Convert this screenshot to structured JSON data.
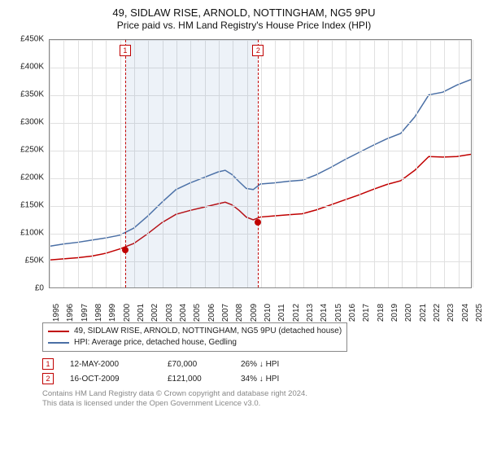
{
  "title": "49, SIDLAW RISE, ARNOLD, NOTTINGHAM, NG5 9PU",
  "subtitle": "Price paid vs. HM Land Registry's House Price Index (HPI)",
  "chart": {
    "type": "line",
    "background_color": "#ffffff",
    "grid_color": "#e0e0e0",
    "axis_color": "#888888",
    "ylim": [
      0,
      450000
    ],
    "ytick_step": 50000,
    "ytick_labels": [
      "£0",
      "£50K",
      "£100K",
      "£150K",
      "£200K",
      "£250K",
      "£300K",
      "£350K",
      "£400K",
      "£450K"
    ],
    "x_years": [
      1995,
      1996,
      1997,
      1998,
      1999,
      2000,
      2001,
      2002,
      2003,
      2004,
      2005,
      2006,
      2007,
      2008,
      2009,
      2010,
      2011,
      2012,
      2013,
      2014,
      2015,
      2016,
      2017,
      2018,
      2019,
      2020,
      2021,
      2022,
      2023,
      2024,
      2025
    ],
    "band": {
      "start_year": 2000.36,
      "end_year": 2009.79,
      "color": "rgba(110,150,200,0.12)",
      "edge_color": "#c00000"
    },
    "series": [
      {
        "name": "hpi",
        "label": "HPI: Average price, detached house, Gedling",
        "color": "#4a6fa5",
        "width": 1.5,
        "years": [
          1995,
          1996,
          1997,
          1998,
          1999,
          2000,
          2001,
          2002,
          2003,
          2004,
          2005,
          2006,
          2007,
          2007.5,
          2008,
          2008.5,
          2009,
          2009.5,
          2010,
          2011,
          2012,
          2013,
          2014,
          2015,
          2016,
          2017,
          2018,
          2019,
          2020,
          2021,
          2022,
          2023,
          2024,
          2025
        ],
        "values": [
          75000,
          79000,
          82000,
          86000,
          90000,
          95000,
          108000,
          130000,
          155000,
          178000,
          190000,
          200000,
          210000,
          213000,
          205000,
          192000,
          180000,
          178000,
          188000,
          190000,
          193000,
          195000,
          205000,
          218000,
          232000,
          245000,
          258000,
          270000,
          280000,
          310000,
          350000,
          355000,
          368000,
          378000
        ]
      },
      {
        "name": "property",
        "label": "49, SIDLAW RISE, ARNOLD, NOTTINGHAM, NG5 9PU (detached house)",
        "color": "#c00000",
        "width": 1.5,
        "years": [
          1995,
          1996,
          1997,
          1998,
          1999,
          2000,
          2001,
          2002,
          2003,
          2004,
          2005,
          2006,
          2007,
          2007.5,
          2008,
          2008.5,
          2009,
          2009.5,
          2010,
          2011,
          2012,
          2013,
          2014,
          2015,
          2016,
          2017,
          2018,
          2019,
          2020,
          2021,
          2022,
          2023,
          2024,
          2025
        ],
        "values": [
          50000,
          52000,
          54000,
          57000,
          62000,
          70000,
          80000,
          98000,
          118000,
          133000,
          140000,
          146000,
          152000,
          155000,
          150000,
          140000,
          128000,
          123000,
          128000,
          130000,
          132000,
          134000,
          141000,
          150000,
          159000,
          168000,
          178000,
          187000,
          194000,
          213000,
          238000,
          237000,
          238000,
          242000
        ]
      }
    ],
    "sale_points": [
      {
        "num": "1",
        "year": 2000.36,
        "value": 70000
      },
      {
        "num": "2",
        "year": 2009.79,
        "value": 121000
      }
    ]
  },
  "legend": {
    "items": [
      {
        "color": "#c00000",
        "label": "49, SIDLAW RISE, ARNOLD, NOTTINGHAM, NG5 9PU (detached house)"
      },
      {
        "color": "#4a6fa5",
        "label": "HPI: Average price, detached house, Gedling"
      }
    ]
  },
  "transactions": [
    {
      "num": "1",
      "date": "12-MAY-2000",
      "price": "£70,000",
      "vs_hpi": "26% ↓ HPI"
    },
    {
      "num": "2",
      "date": "16-OCT-2009",
      "price": "£121,000",
      "vs_hpi": "34% ↓ HPI"
    }
  ],
  "attribution": {
    "line1": "Contains HM Land Registry data © Crown copyright and database right 2024.",
    "line2": "This data is licensed under the Open Government Licence v3.0."
  }
}
